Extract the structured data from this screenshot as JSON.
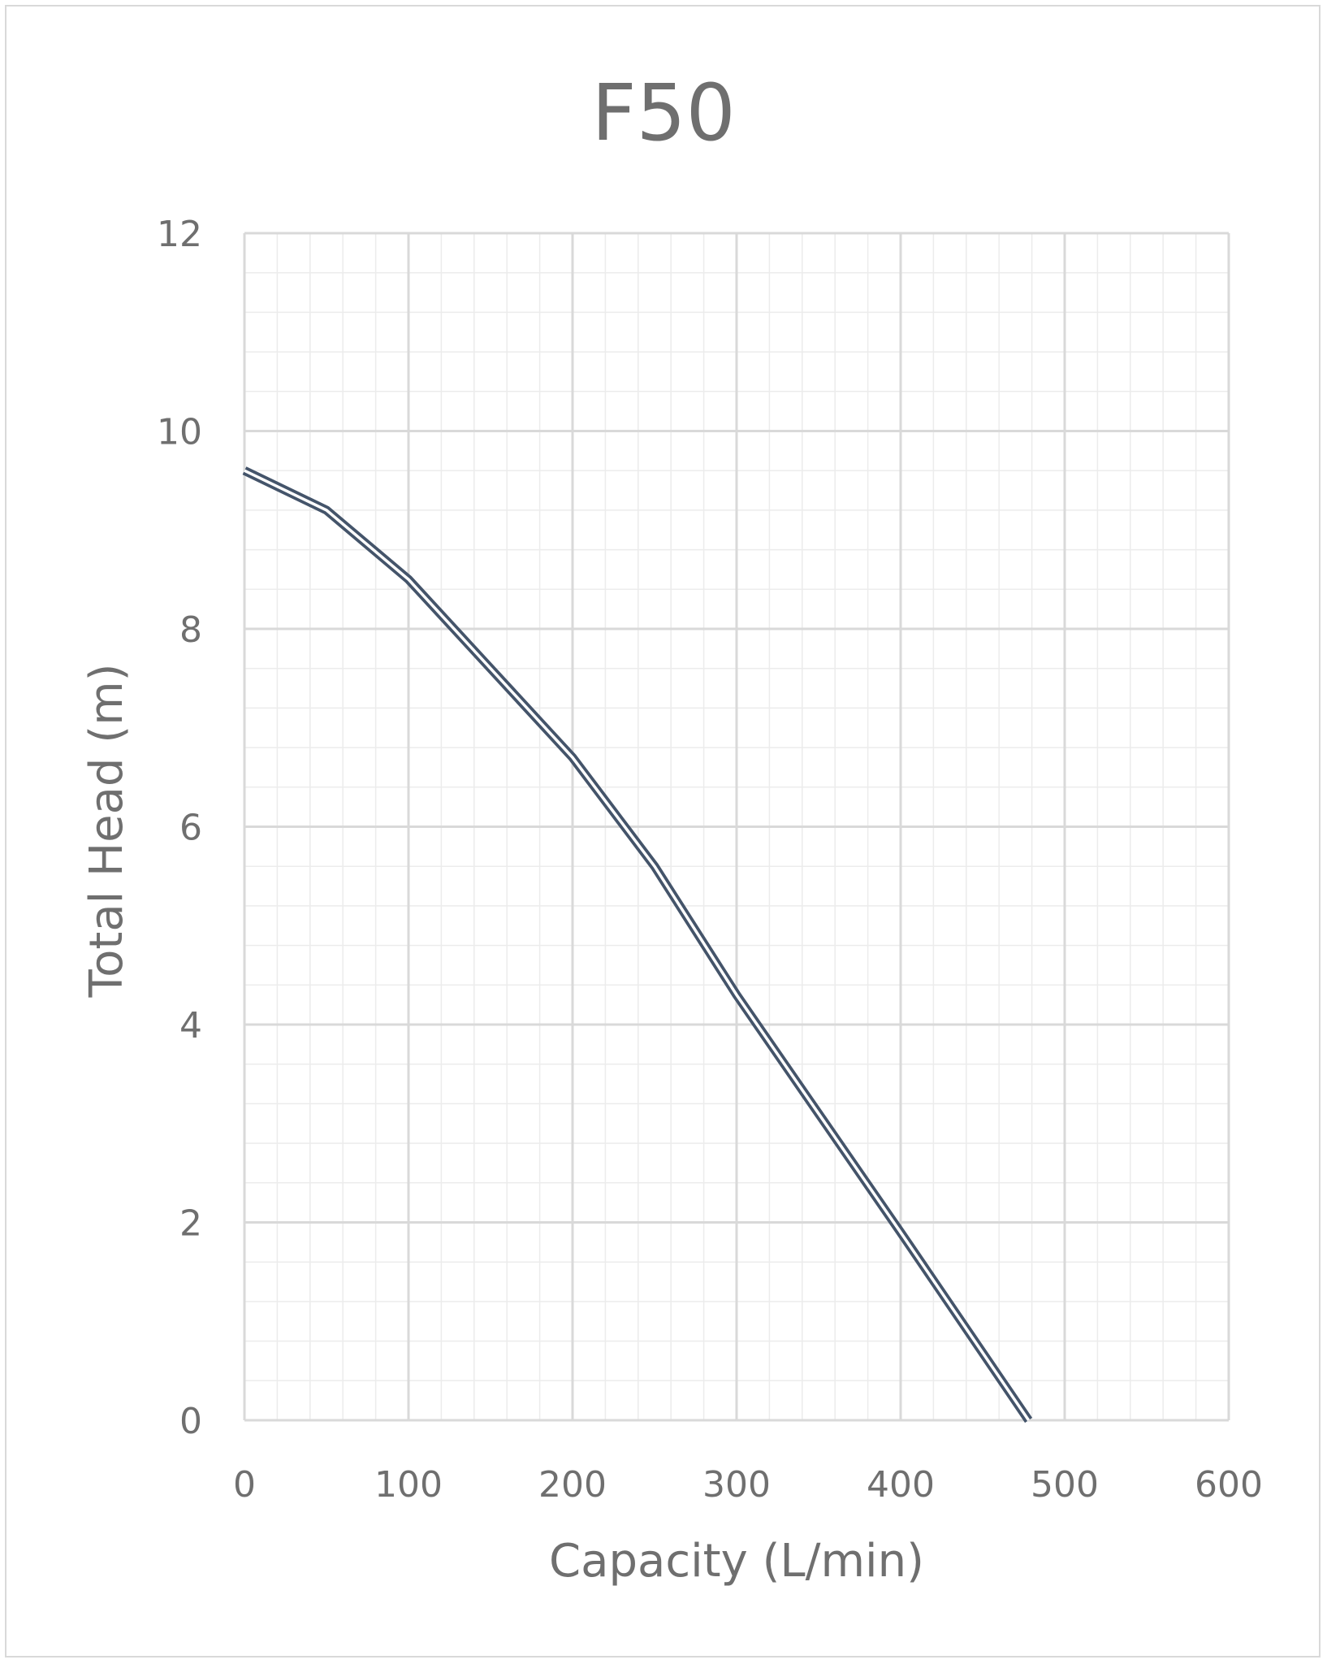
{
  "chart_data": {
    "type": "line",
    "title": "F50",
    "subtitle": "",
    "xlabel": "Capacity (L/min)",
    "ylabel": "Total Head (m)",
    "xlim": [
      0,
      600
    ],
    "ylim": [
      0,
      12
    ],
    "x_ticks": [
      0,
      100,
      200,
      300,
      400,
      500,
      600
    ],
    "y_ticks": [
      0,
      2,
      4,
      6,
      8,
      10,
      12
    ],
    "x_tick_labels": [
      "0",
      "100",
      "200",
      "300",
      "400",
      "500",
      "600"
    ],
    "y_tick_labels": [
      "0",
      "2",
      "4",
      "6",
      "8",
      "10",
      "12"
    ],
    "grid": true,
    "minor_grid": true,
    "legend": "none",
    "colors": {
      "line_outer": "#44546a",
      "line_inner": "#ffffff",
      "major_grid": "#d9d9d9",
      "minor_grid": "#ececec",
      "text": "#6f6f6f",
      "frame": "#d9d9d9"
    },
    "series": [
      {
        "x": [
          0,
          50,
          100,
          150,
          200,
          250,
          300,
          350,
          400,
          478
        ],
        "y": [
          9.6,
          9.2,
          8.5,
          7.6,
          6.7,
          5.6,
          4.3,
          3.1,
          1.9,
          0.0
        ]
      }
    ]
  }
}
